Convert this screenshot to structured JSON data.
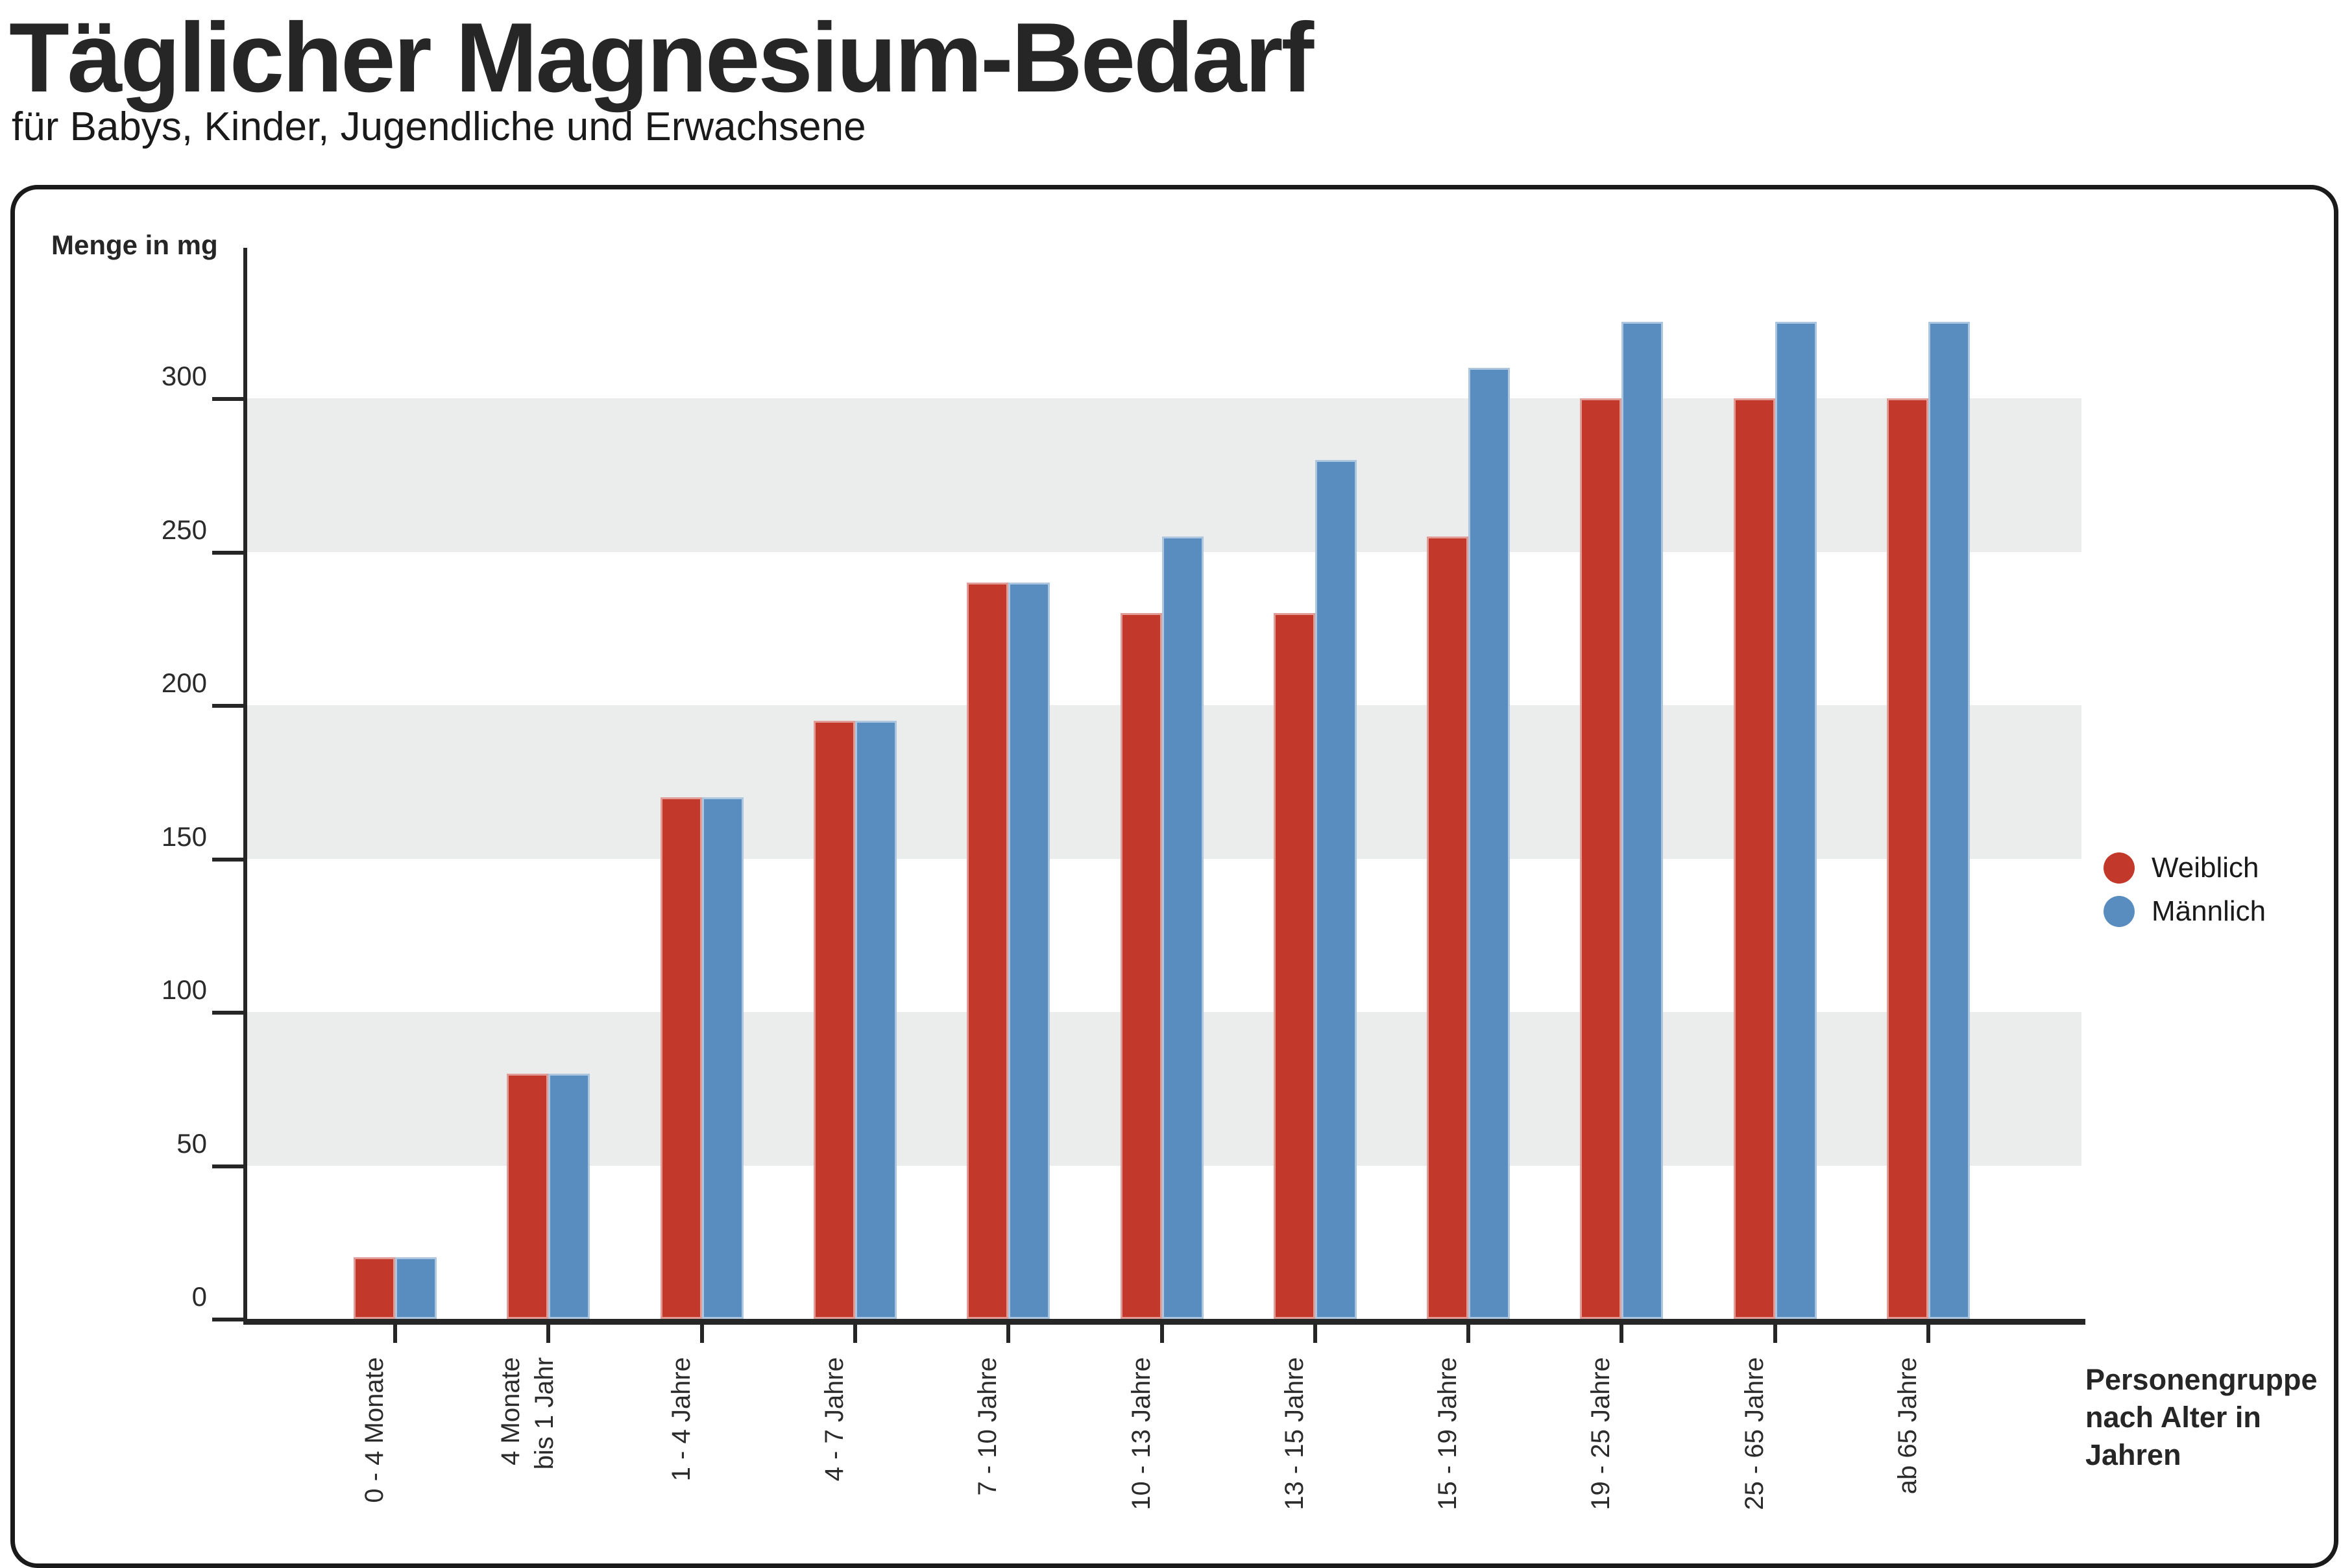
{
  "header": {
    "title": "Täglicher Magnesium-Bedarf",
    "subtitle": "für Babys, Kinder, Jugendliche und Erwachsene"
  },
  "chart_data": {
    "type": "bar",
    "title": "Täglicher Magnesium-Bedarf",
    "subtitle": "für Babys, Kinder, Jugendliche und Erwachsene",
    "ylabel": "Menge in mg",
    "xlabel": "Personengruppe nach Alter in Jahren",
    "xlabel_lines": [
      "Personengruppe",
      "nach Alter in Jahren"
    ],
    "unit": "mg",
    "y_ticks": [
      0,
      50,
      100,
      150,
      200,
      250,
      300
    ],
    "ylim": [
      0,
      345
    ],
    "grid_bands_gray": [
      [
        50,
        100
      ],
      [
        150,
        200
      ],
      [
        250,
        300
      ]
    ],
    "grid_on": true,
    "legend_position": "right",
    "categories": [
      {
        "lines": [
          "0 - 4 Monate"
        ]
      },
      {
        "lines": [
          "4 Monate",
          "bis 1 Jahr"
        ]
      },
      {
        "lines": [
          "1 - 4 Jahre"
        ]
      },
      {
        "lines": [
          "4 - 7 Jahre"
        ]
      },
      {
        "lines": [
          "7 - 10 Jahre"
        ]
      },
      {
        "lines": [
          "10 - 13 Jahre"
        ]
      },
      {
        "lines": [
          "13 - 15 Jahre"
        ]
      },
      {
        "lines": [
          "15 - 19 Jahre"
        ]
      },
      {
        "lines": [
          "19 - 25 Jahre"
        ]
      },
      {
        "lines": [
          "25 - 65 Jahre"
        ]
      },
      {
        "lines": [
          "ab 65 Jahre"
        ]
      }
    ],
    "series": [
      {
        "name": "Weiblich",
        "color": "#c2392b",
        "values": [
          20,
          80,
          170,
          195,
          240,
          230,
          230,
          255,
          300,
          300,
          300
        ]
      },
      {
        "name": "Männlich",
        "color": "#5a8dbf",
        "values": [
          20,
          80,
          170,
          195,
          240,
          255,
          280,
          310,
          325,
          325,
          325
        ]
      }
    ],
    "legend": {
      "items": [
        {
          "label": "Weiblich",
          "color": "#c2392b"
        },
        {
          "label": "Männlich",
          "color": "#5a8dbf"
        }
      ]
    },
    "colors": {
      "band": "#ebecec",
      "axis": "#262626",
      "text": "#2b2b2b",
      "card_border": "#1a1a1a",
      "background": "#ffffff"
    }
  }
}
